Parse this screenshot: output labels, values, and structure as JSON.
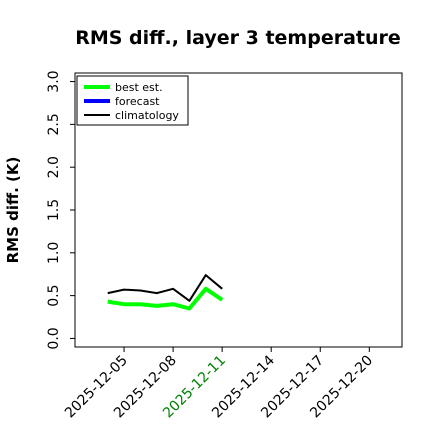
{
  "chart_data": {
    "type": "line",
    "title": "RMS diff., layer 3 temperature",
    "xlabel": "",
    "ylabel": "RMS diff. (K)",
    "xlim": [
      "2025-12-02",
      "2025-12-22"
    ],
    "ylim": [
      -0.1,
      3.1
    ],
    "yticks": [
      0.0,
      0.5,
      1.0,
      1.5,
      2.0,
      2.5,
      3.0
    ],
    "ytick_labels": [
      "0.0",
      "0.5",
      "1.0",
      "1.5",
      "2.0",
      "2.5",
      "3.0"
    ],
    "xticks": [
      "2025-12-05",
      "2025-12-08",
      "2025-12-11",
      "2025-12-14",
      "2025-12-17",
      "2025-12-20"
    ],
    "highlight_tick": "2025-12-11",
    "highlight_color": "#008000",
    "grid": false,
    "legend_position": "top-left",
    "series": [
      {
        "name": "best est.",
        "color": "#00ff00",
        "x": [
          "2025-12-04",
          "2025-12-05",
          "2025-12-06",
          "2025-12-07",
          "2025-12-08",
          "2025-12-09",
          "2025-12-10",
          "2025-12-11"
        ],
        "y": [
          0.43,
          0.4,
          0.4,
          0.38,
          0.4,
          0.35,
          0.58,
          0.45
        ]
      },
      {
        "name": "forecast",
        "color": "#0000ff",
        "x": [],
        "y": []
      },
      {
        "name": "climatology",
        "color": "#000000",
        "x": [
          "2025-12-04",
          "2025-12-05",
          "2025-12-06",
          "2025-12-07",
          "2025-12-08",
          "2025-12-09",
          "2025-12-10",
          "2025-12-11"
        ],
        "y": [
          0.53,
          0.57,
          0.56,
          0.53,
          0.58,
          0.44,
          0.74,
          0.58
        ]
      }
    ]
  }
}
